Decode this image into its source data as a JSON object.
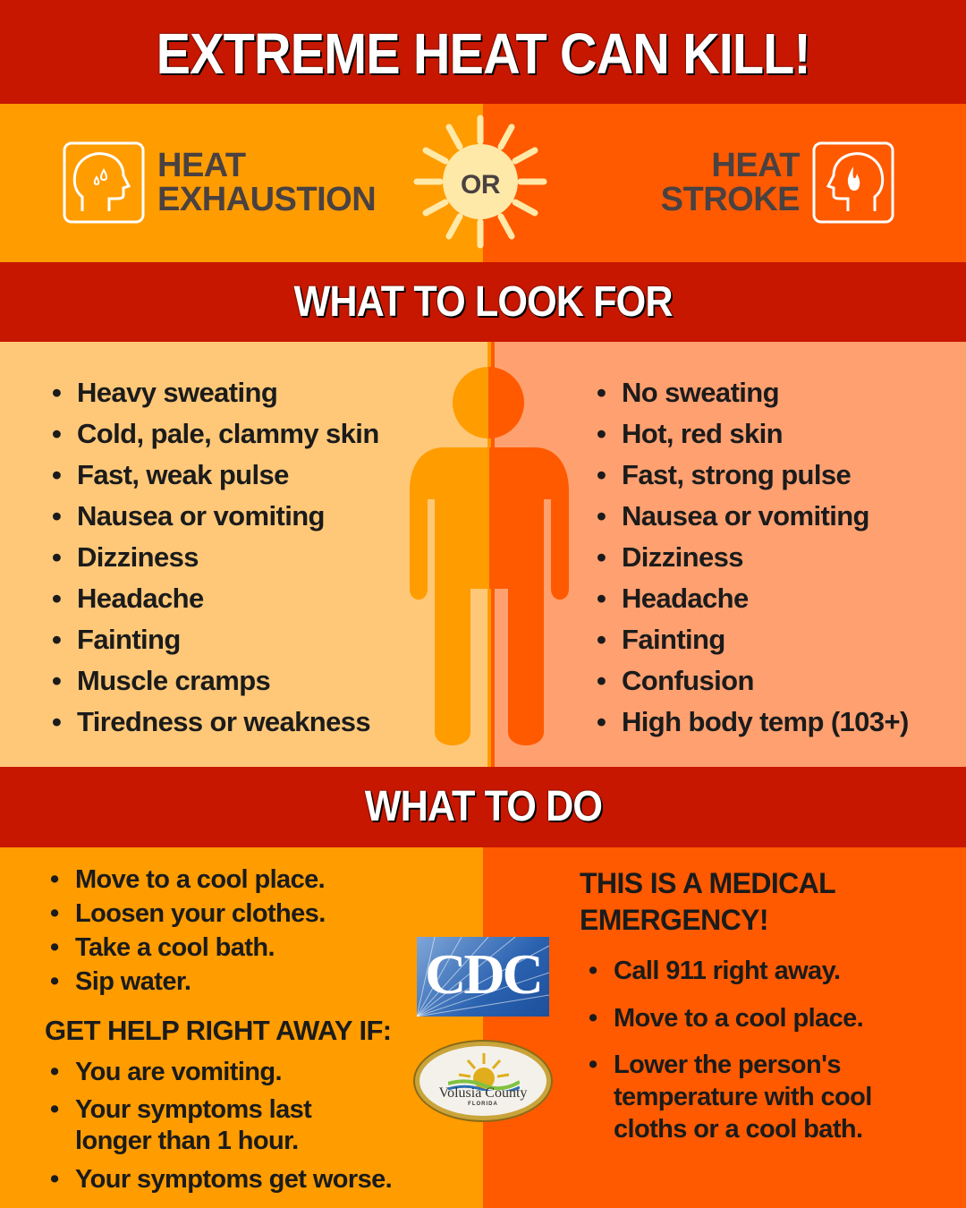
{
  "title": "EXTREME HEAT CAN KILL!",
  "colors": {
    "red": "#c81700",
    "exhaustion": "#ff9c00",
    "stroke": "#ff5a00",
    "exhaustion_light": "#ffc878",
    "stroke_light": "#ffa070",
    "sun": "#ffe9a8"
  },
  "conditions": {
    "left": {
      "line1": "HEAT",
      "line2": "EXHAUSTION",
      "icon": "head-sweat-icon"
    },
    "or": "OR",
    "right": {
      "line1": "HEAT",
      "line2": "STROKE",
      "icon": "head-flame-icon"
    }
  },
  "look_for": {
    "heading": "WHAT TO LOOK FOR",
    "exhaustion": [
      "Heavy sweating",
      "Cold, pale, clammy skin",
      "Fast, weak pulse",
      "Nausea or vomiting",
      "Dizziness",
      "Headache",
      "Fainting",
      "Muscle cramps",
      "Tiredness or weakness"
    ],
    "stroke": [
      "No sweating",
      "Hot, red skin",
      "Fast, strong pulse",
      "Nausea or vomiting",
      "Dizziness",
      "Headache",
      "Fainting",
      "Confusion",
      "High body temp (103+)"
    ]
  },
  "what_to_do": {
    "heading": "WHAT TO DO",
    "exhaustion": [
      "Move to a cool place.",
      "Loosen your clothes.",
      "Take a cool bath.",
      "Sip water."
    ],
    "help_heading": "GET HELP RIGHT AWAY IF:",
    "help": [
      "You are vomiting.",
      "Your symptoms last longer than 1 hour.",
      "Your symptoms get worse."
    ],
    "stroke_heading": "THIS IS A MEDICAL EMERGENCY!",
    "stroke": [
      "Call 911 right away.",
      "Move to a cool place.",
      "Lower the person's temperature with cool cloths or a cool bath."
    ]
  },
  "logos": {
    "cdc": "CDC",
    "county": "Volusia County",
    "state": "FLORIDA"
  }
}
